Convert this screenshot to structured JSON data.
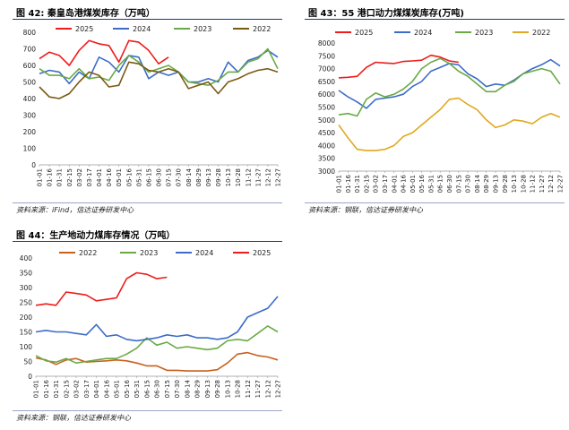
{
  "panels": [
    {
      "title": "图 42: 秦皇岛港煤炭库存（万吨）",
      "source": "资料来源：iFind，信达证券研发中心"
    },
    {
      "title": "图 43：55 港口动力煤煤炭库存(万吨)",
      "source": "资料来源：钢联，信达证券研发中心"
    },
    {
      "title": "图 44：生产地动力煤库存情况（万吨）",
      "source": "资料来源：钢联，信达证券研发中心"
    }
  ],
  "chart_data": [
    {
      "type": "line",
      "ylim": [
        0,
        800
      ],
      "yticks": [
        0,
        100,
        200,
        300,
        400,
        500,
        600,
        700,
        800
      ],
      "categories": [
        "01-01",
        "01-16",
        "01-31",
        "02-15",
        "03-02",
        "03-17",
        "04-01",
        "04-16",
        "05-01",
        "05-16",
        "05-31",
        "06-15",
        "06-30",
        "07-15",
        "07-30",
        "08-14",
        "08-29",
        "09-13",
        "09-28",
        "10-13",
        "10-28",
        "11-12",
        "11-27",
        "12-12",
        "12-27"
      ],
      "legend_position": "top",
      "series": [
        {
          "name": "2025",
          "color": "#ee1c1c",
          "values": [
            640,
            680,
            660,
            600,
            690,
            750,
            730,
            720,
            620,
            750,
            740,
            690,
            610,
            650,
            null,
            null,
            null,
            null,
            null,
            null,
            null,
            null,
            null,
            null,
            null
          ]
        },
        {
          "name": "2024",
          "color": "#3c6cc8",
          "values": [
            550,
            570,
            560,
            490,
            560,
            520,
            650,
            620,
            560,
            660,
            650,
            520,
            560,
            540,
            560,
            500,
            500,
            520,
            500,
            620,
            560,
            630,
            650,
            690,
            650
          ]
        },
        {
          "name": "2023",
          "color": "#6aaa46",
          "values": [
            580,
            540,
            540,
            520,
            580,
            520,
            530,
            510,
            600,
            660,
            620,
            560,
            580,
            600,
            560,
            500,
            490,
            480,
            510,
            560,
            560,
            620,
            640,
            700,
            580
          ]
        },
        {
          "name": "2022",
          "color": "#7a5a10",
          "values": [
            470,
            410,
            400,
            430,
            500,
            560,
            540,
            470,
            480,
            620,
            610,
            570,
            560,
            580,
            560,
            460,
            480,
            500,
            430,
            500,
            520,
            550,
            570,
            580,
            560
          ]
        }
      ]
    },
    {
      "type": "line",
      "ylim": [
        3000,
        8000
      ],
      "yticks": [
        3000,
        3500,
        4000,
        4500,
        5000,
        5500,
        6000,
        6500,
        7000,
        7500,
        8000
      ],
      "categories": [
        "01-01",
        "01-16",
        "01-31",
        "02-15",
        "03-02",
        "03-17",
        "04-01",
        "04-16",
        "05-01",
        "05-16",
        "05-31",
        "06-15",
        "06-30",
        "07-15",
        "07-30",
        "08-14",
        "08-29",
        "09-13",
        "09-28",
        "10-13",
        "10-28",
        "11-12",
        "11-27",
        "12-12",
        "12-27"
      ],
      "legend_position": "top",
      "series": [
        {
          "name": "2025",
          "color": "#ee1c1c",
          "values": [
            6640,
            6660,
            6700,
            7050,
            7250,
            7220,
            7200,
            7280,
            7300,
            7330,
            7520,
            7450,
            7300,
            7250,
            null,
            null,
            null,
            null,
            null,
            null,
            null,
            null,
            null,
            null,
            null
          ]
        },
        {
          "name": "2024",
          "color": "#3c6cc8",
          "values": [
            6150,
            5900,
            5700,
            5450,
            5800,
            5850,
            5900,
            6000,
            6300,
            6500,
            6900,
            7050,
            7200,
            7150,
            6800,
            6600,
            6300,
            6400,
            6350,
            6550,
            6800,
            7000,
            7150,
            7350,
            7100
          ]
        },
        {
          "name": "2023",
          "color": "#6aaa46",
          "values": [
            5200,
            5250,
            5150,
            5800,
            6050,
            5900,
            6000,
            6200,
            6500,
            7000,
            7250,
            7400,
            7200,
            6900,
            6700,
            6400,
            6100,
            6100,
            6350,
            6500,
            6800,
            6900,
            7000,
            6900,
            6400
          ]
        },
        {
          "name": "2022",
          "color": "#e0a820",
          "values": [
            4800,
            4300,
            3850,
            3800,
            3800,
            3850,
            4000,
            4350,
            4500,
            4800,
            5100,
            5400,
            5800,
            5850,
            5600,
            5400,
            5000,
            4700,
            4800,
            5000,
            4950,
            4850,
            5100,
            5250,
            5100
          ]
        }
      ]
    },
    {
      "type": "line",
      "ylim": [
        0,
        400
      ],
      "yticks": [
        0,
        50,
        100,
        150,
        200,
        250,
        300,
        350,
        400
      ],
      "categories": [
        "01-01",
        "01-16",
        "01-31",
        "02-15",
        "03-02",
        "03-17",
        "04-01",
        "04-16",
        "05-01",
        "05-16",
        "05-31",
        "06-15",
        "06-30",
        "07-15",
        "07-30",
        "08-14",
        "08-29",
        "09-13",
        "09-28",
        "10-13",
        "10-28",
        "11-12",
        "11-27",
        "12-12",
        "12-27"
      ],
      "legend_position": "top",
      "series": [
        {
          "name": "2022",
          "color": "#c8601e",
          "values": [
            62,
            55,
            40,
            55,
            60,
            48,
            50,
            52,
            55,
            52,
            45,
            35,
            35,
            20,
            20,
            18,
            18,
            18,
            22,
            45,
            75,
            80,
            70,
            65,
            55
          ]
        },
        {
          "name": "2023",
          "color": "#6aaa46",
          "values": [
            70,
            52,
            48,
            60,
            45,
            50,
            55,
            60,
            60,
            75,
            95,
            130,
            105,
            115,
            95,
            100,
            95,
            90,
            95,
            120,
            125,
            120,
            145,
            170,
            150
          ]
        },
        {
          "name": "2024",
          "color": "#3c6cc8",
          "values": [
            150,
            155,
            150,
            150,
            145,
            140,
            175,
            135,
            140,
            125,
            120,
            125,
            130,
            140,
            135,
            140,
            130,
            130,
            125,
            130,
            150,
            200,
            215,
            230,
            270
          ]
        },
        {
          "name": "2025",
          "color": "#ee1c1c",
          "values": [
            240,
            245,
            240,
            285,
            280,
            275,
            255,
            260,
            265,
            330,
            350,
            345,
            330,
            335,
            null,
            null,
            null,
            null,
            null,
            null,
            null,
            null,
            null,
            null,
            null
          ]
        }
      ]
    }
  ]
}
